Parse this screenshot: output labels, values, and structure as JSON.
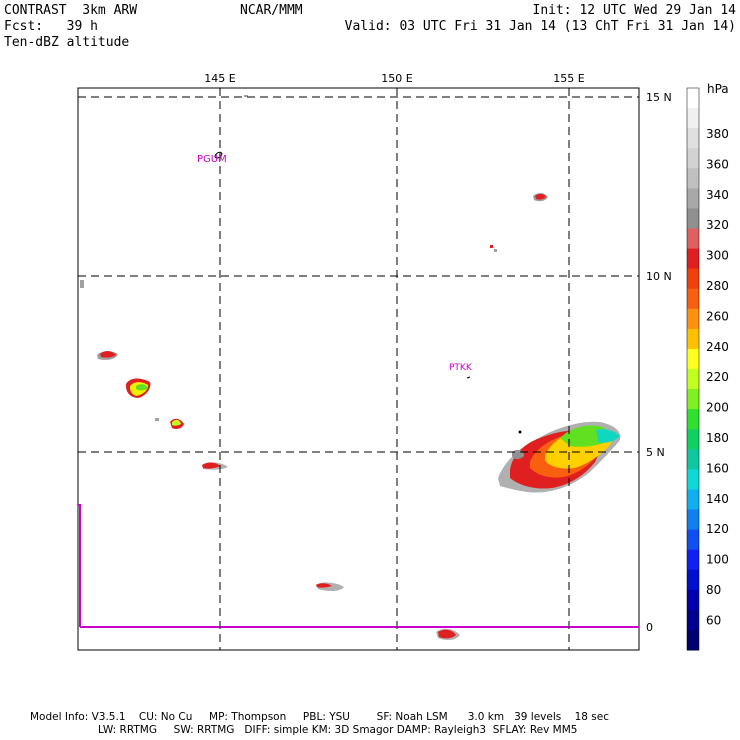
{
  "header": {
    "model": "CONTRAST  3km ARW",
    "forecast": "Fcst:   39 h",
    "field": "Ten-dBZ altitude",
    "org": "NCAR/MMM",
    "init": "Init: 12 UTC Wed 29 Jan 14",
    "valid": "Valid: 03 UTC Fri 31 Jan 14 (13 ChT Fri 31 Jan 14)"
  },
  "map": {
    "lon_labels": [
      "145 E",
      "150 E",
      "155 E"
    ],
    "lat_labels": [
      "15 N",
      "10 N",
      "5 N",
      "0"
    ],
    "stations": [
      {
        "id": "PGUM",
        "label": "PGUM"
      },
      {
        "id": "PTKK",
        "label": "PTKK"
      }
    ],
    "grid": "dashed",
    "colors": {
      "station": "#cc00cc",
      "boundary": "#cc00cc"
    }
  },
  "colorbar": {
    "unit": "hPa",
    "labels": [
      "380",
      "360",
      "340",
      "320",
      "300",
      "280",
      "260",
      "240",
      "220",
      "200",
      "180",
      "160",
      "140",
      "120",
      "100",
      "80",
      "60"
    ],
    "colors": [
      "#ffffff",
      "#f0f0f0",
      "#e0e0e0",
      "#d2d2d2",
      "#c0c0c0",
      "#a8a8a8",
      "#909090",
      "#e06060",
      "#e02020",
      "#f04010",
      "#f86010",
      "#ff9010",
      "#ffc000",
      "#ffff20",
      "#c0ff20",
      "#80f020",
      "#30e030",
      "#10d060",
      "#10c8a0",
      "#10d8d8",
      "#10b0f0",
      "#1080f0",
      "#1050f0",
      "#1020f0",
      "#0010d0",
      "#0000b0",
      "#000090",
      "#000070"
    ]
  },
  "footer": {
    "line1": "Model Info: V3.5.1    CU: No Cu     MP: Thompson     PBL: YSU        SF: Noah LSM      3.0 km   39 levels    18 sec",
    "line2": "LW: RRTMG     SW: RRTMG   DIFF: simple KM: 3D Smagor DAMP: Rayleigh3  SFLAY: Rev MM5"
  }
}
